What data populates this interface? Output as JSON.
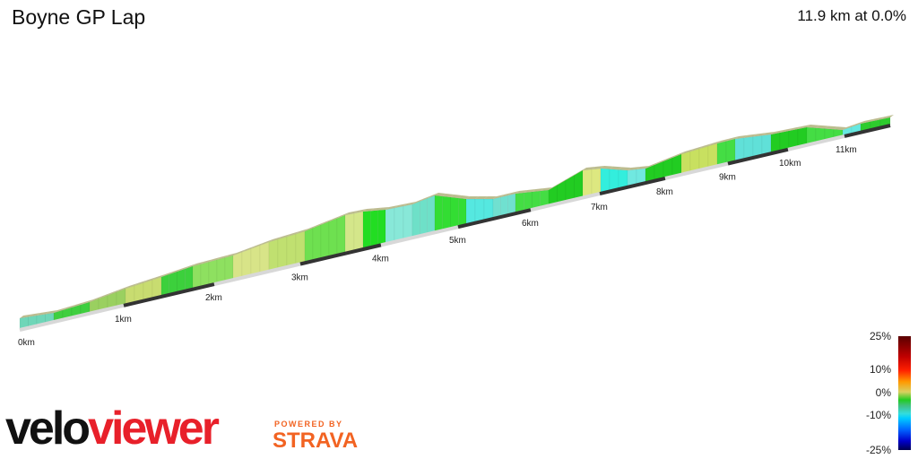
{
  "header": {
    "title": "Boyne GP Lap",
    "summary": "11.9 km at 0.0%"
  },
  "chart_data": {
    "type": "area",
    "title": "Boyne GP Lap",
    "xlabel": "",
    "ylabel": "",
    "x_ticks": [
      "0km",
      "1km",
      "2km",
      "3km",
      "4km",
      "5km",
      "6km",
      "7km",
      "8km",
      "9km",
      "10km",
      "11km"
    ],
    "distance_km": 11.9,
    "average_grade_percent": 0.0,
    "legend": {
      "placement": "bottom-right",
      "labels": [
        "25%",
        "10%",
        "0%",
        "-10%",
        "-25%"
      ],
      "colors": [
        "#5a0000",
        "#ff2000",
        "#22cc22",
        "#00ccff",
        "#000050"
      ]
    }
  },
  "branding": {
    "logo_a": "velo",
    "logo_b": "viewer",
    "powered_by": "POWERED BY",
    "strava": "STRAVA"
  }
}
